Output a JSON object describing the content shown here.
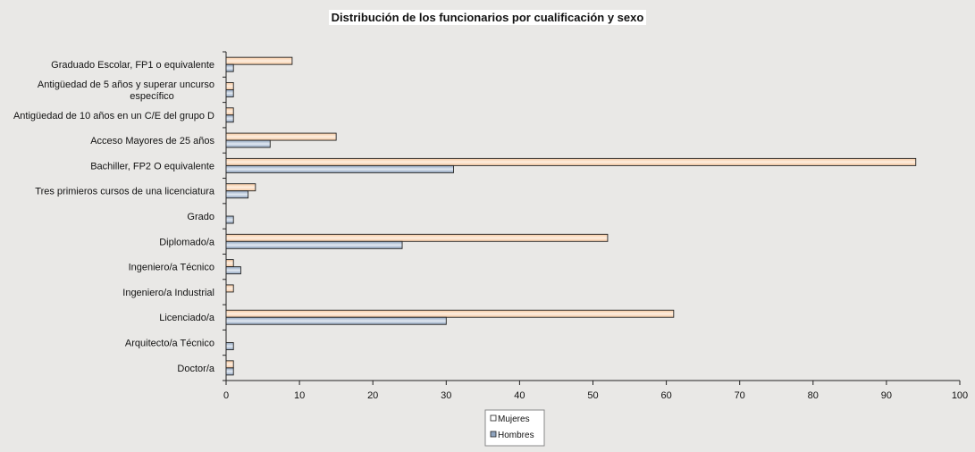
{
  "chart_data": {
    "type": "bar",
    "orientation": "horizontal",
    "title": "Distribución de los funcionarios por cualificación y sexo",
    "categories": [
      [
        "Graduado Escolar, FP1 o equivalente"
      ],
      [
        "Antigüedad de 5 años  y superar uncurso",
        "específico"
      ],
      [
        "Antigüedad de 10 años en un C/E del grupo D"
      ],
      [
        "Acceso Mayores de 25 años"
      ],
      [
        "Bachiller, FP2 O equivalente"
      ],
      [
        "Tres primieros cursos de una licenciatura"
      ],
      [
        "Grado"
      ],
      [
        "Diplomado/a"
      ],
      [
        "Ingeniero/a Técnico"
      ],
      [
        "Ingeniero/a Industrial"
      ],
      [
        "Licenciado/a"
      ],
      [
        "Arquitecto/a Técnico"
      ],
      [
        "Doctor/a"
      ]
    ],
    "series": [
      {
        "name": "Mujeres",
        "values": [
          9,
          1,
          1,
          15,
          94,
          4,
          0,
          52,
          1,
          1,
          61,
          0,
          1
        ]
      },
      {
        "name": "Hombres",
        "values": [
          1,
          1,
          1,
          6,
          31,
          3,
          1,
          24,
          2,
          0,
          30,
          1,
          1
        ]
      }
    ],
    "xlim": [
      0,
      100
    ],
    "xticks": [
      0,
      10,
      20,
      30,
      40,
      50,
      60,
      70,
      80,
      90,
      100
    ],
    "grid": false,
    "legend_position": "bottom",
    "colors": {
      "Mujeres": "#f6c8a0",
      "Hombres": "#8fa4bf"
    }
  }
}
